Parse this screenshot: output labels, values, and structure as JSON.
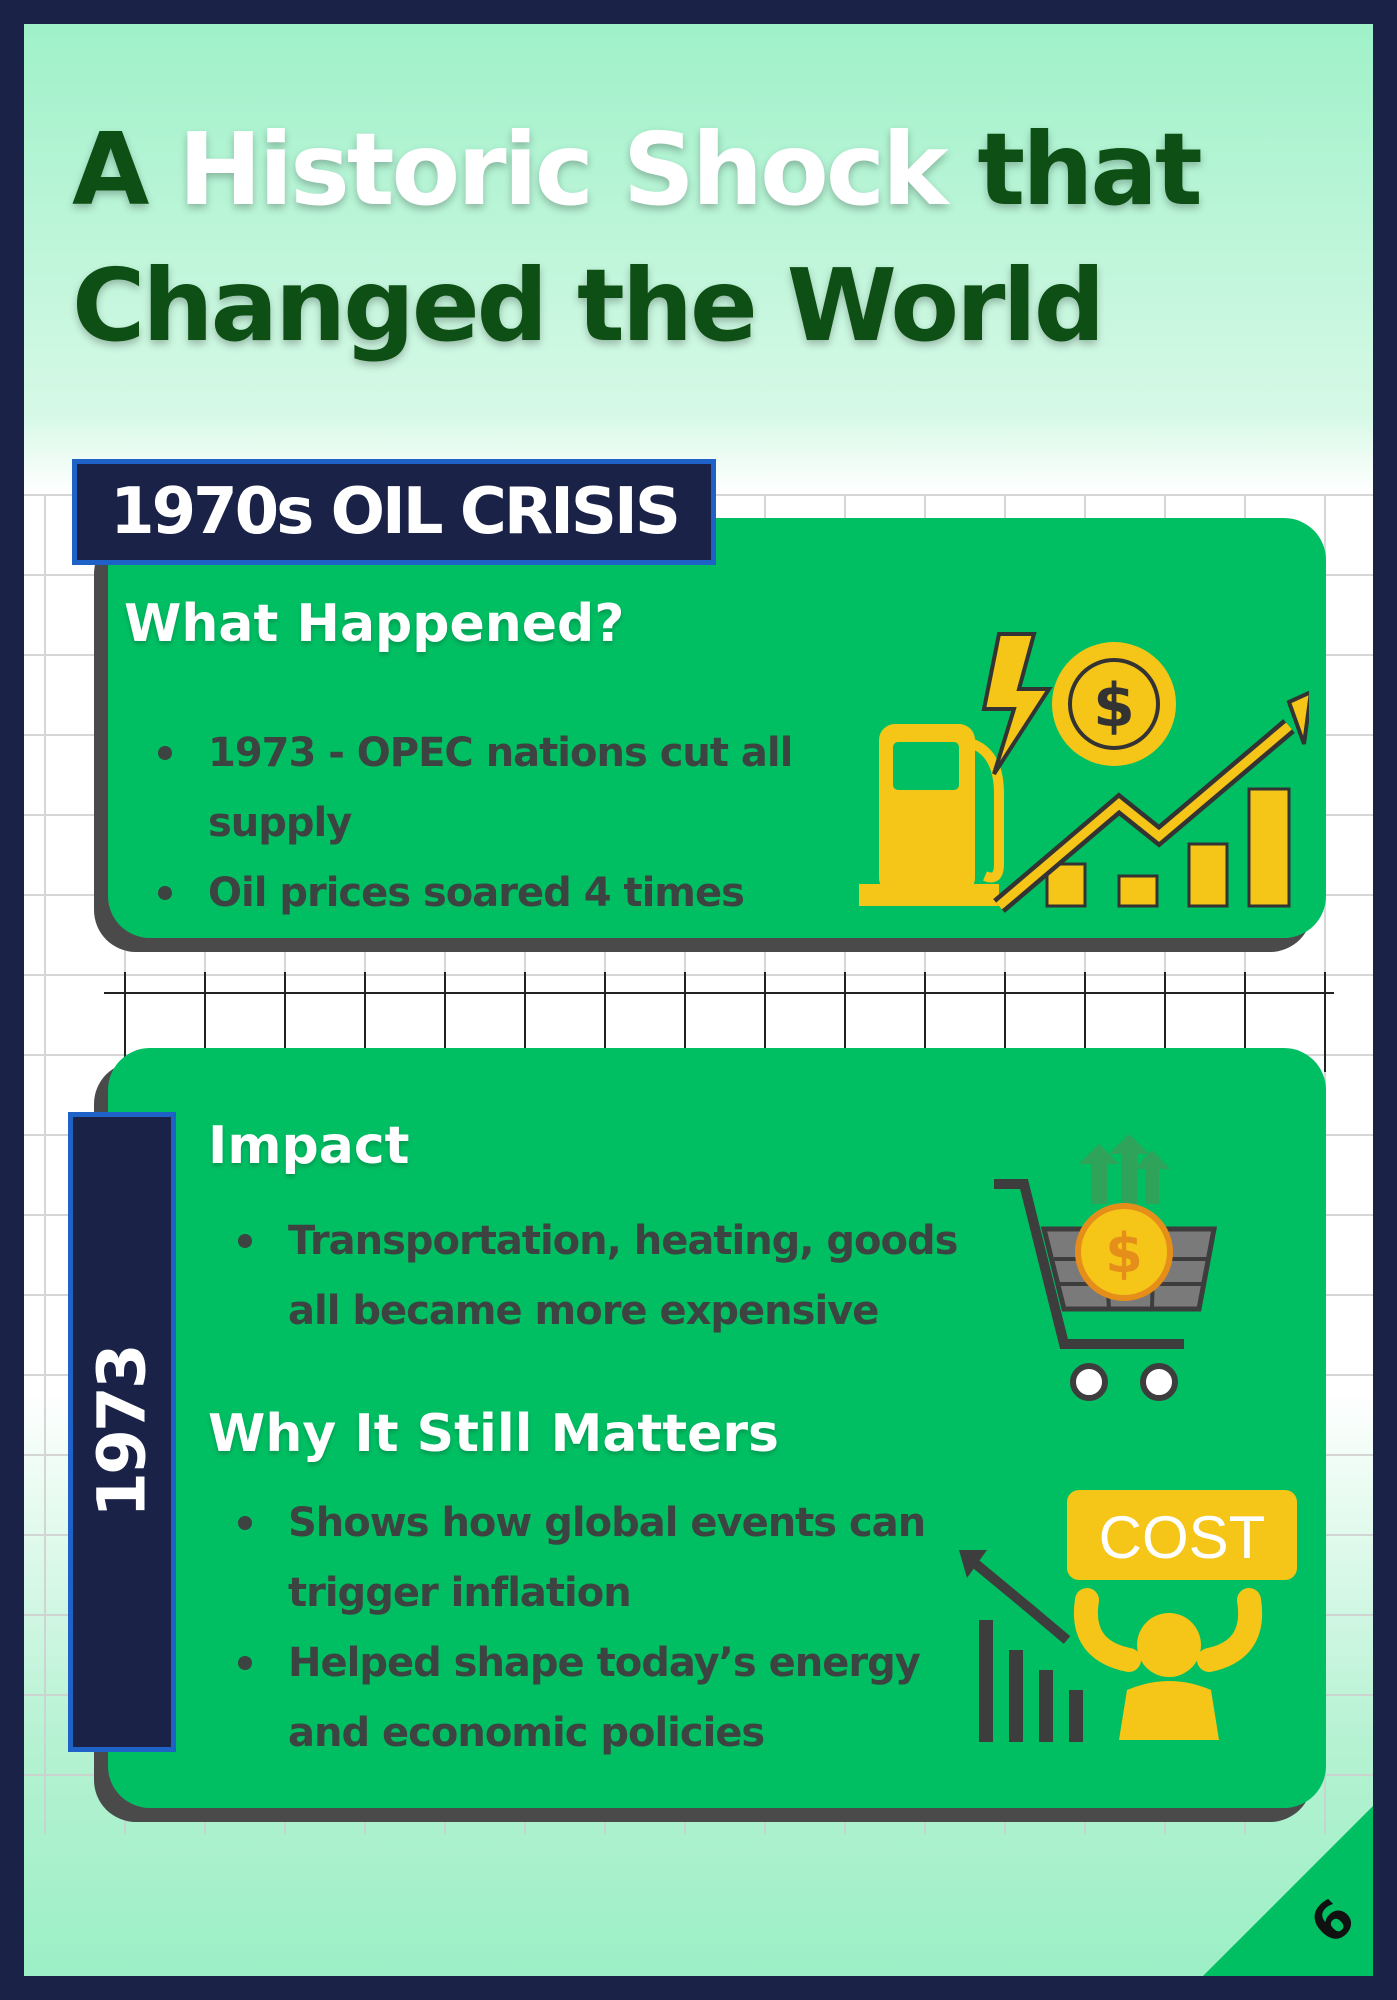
{
  "title": {
    "part1": "A ",
    "highlight": "Historic Shock",
    "part2": " that Changed the World"
  },
  "banner": {
    "label": "1970s OIL CRISIS"
  },
  "side_tab": {
    "label": "1973"
  },
  "section1": {
    "heading": "What Happened?",
    "bullets": [
      "1973 - OPEC nations cut all supply",
      "Oil prices soared 4 times"
    ],
    "icon": "fuel-price-rise-icon"
  },
  "section2": {
    "heading": "Impact",
    "bullets": [
      "Transportation, heating, goods all became more expensive"
    ],
    "icon": "shopping-cart-cost-icon"
  },
  "section3": {
    "heading": "Why It Still Matters",
    "bullets": [
      "Shows how global events can trigger inflation",
      "Helped shape today’s energy and economic policies"
    ],
    "icon": "cost-burden-icon",
    "icon_label": "COST"
  },
  "page_number": "6",
  "colors": {
    "navy": "#1a2248",
    "green": "#00bf63",
    "dark_green": "#0d4f14",
    "gold": "#f5c518"
  }
}
